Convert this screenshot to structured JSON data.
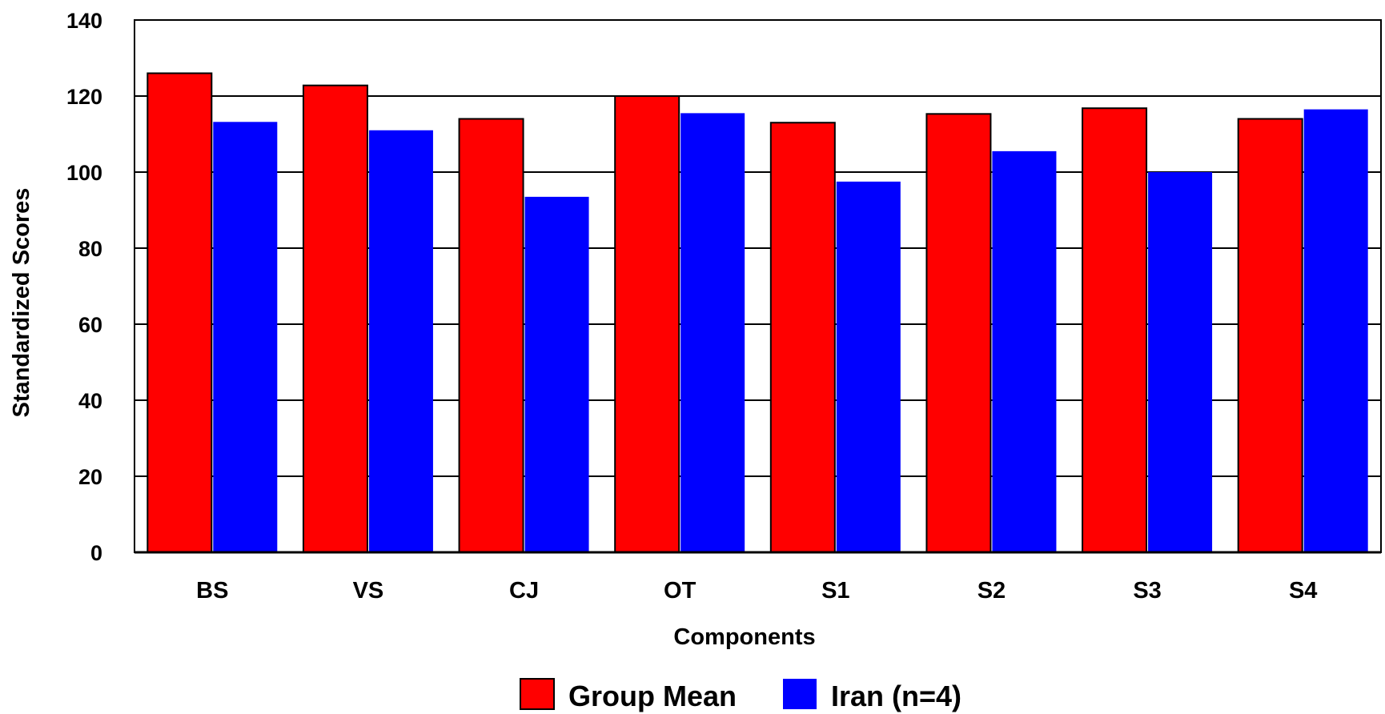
{
  "chart_data": {
    "type": "bar",
    "title": "",
    "xlabel": "Components",
    "ylabel": "Standardized Scores",
    "ylim": [
      0,
      140
    ],
    "yticks": [
      0,
      20,
      40,
      60,
      80,
      100,
      120,
      140
    ],
    "grid": true,
    "legend_position": "bottom",
    "categories": [
      "BS",
      "VS",
      "CJ",
      "OT",
      "S1",
      "S2",
      "S3",
      "S4"
    ],
    "series": [
      {
        "name": "Group Mean",
        "color": "#ff0000",
        "values": [
          126,
          122.8,
          114,
          120,
          113,
          115.3,
          116.8,
          114
        ]
      },
      {
        "name": "Iran (n=4)",
        "color": "#0000ff",
        "values": [
          113.2,
          111,
          93.5,
          115.5,
          97.5,
          105.5,
          100,
          116.5
        ]
      }
    ]
  }
}
